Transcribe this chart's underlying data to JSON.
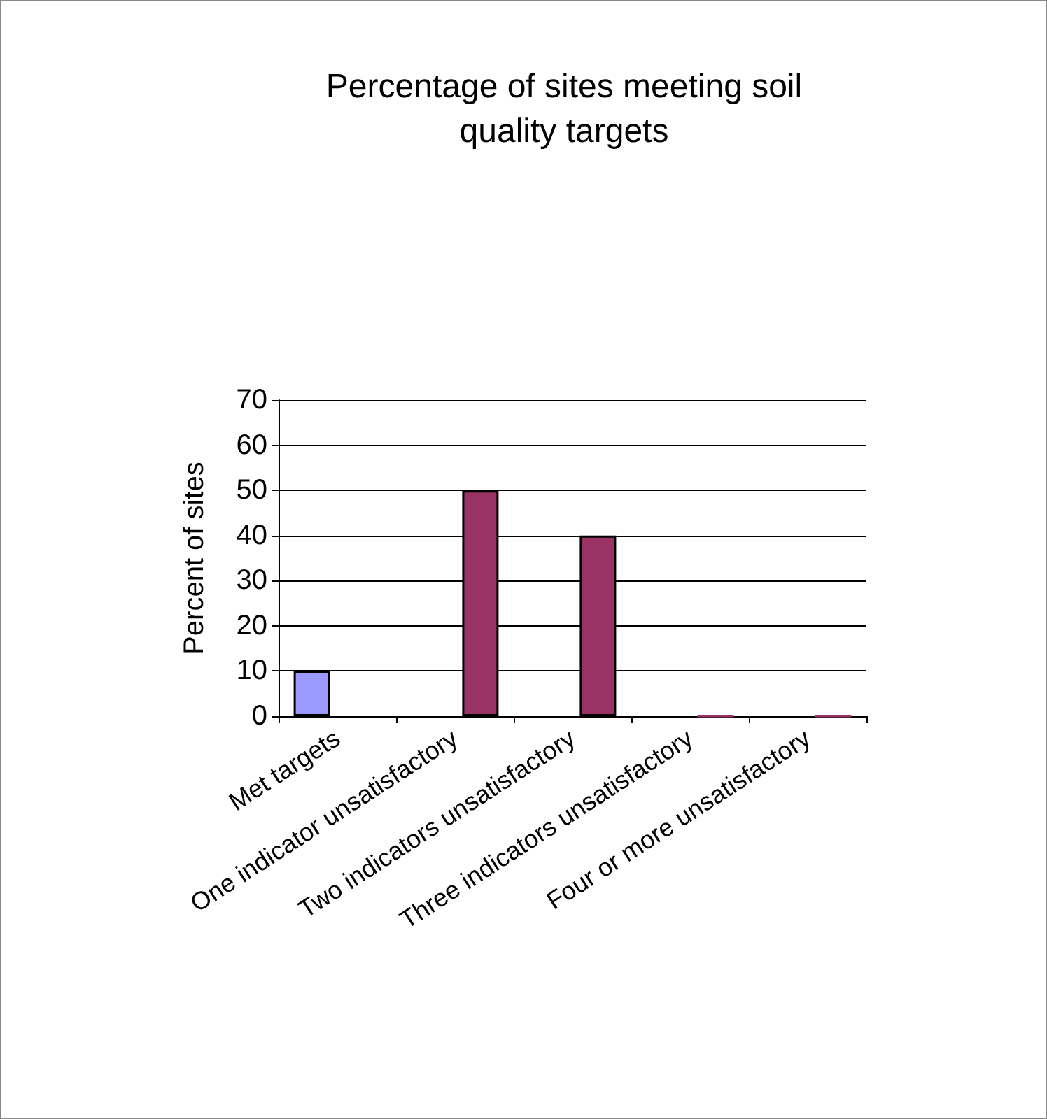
{
  "chart_data": {
    "type": "bar",
    "title": "Percentage of sites meeting soil\nquality targets",
    "ylabel": "Percent of sites",
    "categories": [
      "Met targets",
      "One indicator unsatisfactory",
      "Two indicators unsatisfactory",
      "Three indicators unsatisfactory",
      "Four or more unsatisfactory"
    ],
    "series": [
      {
        "color": "#9999ff",
        "values": [
          10,
          null,
          null,
          null,
          null
        ]
      },
      {
        "color": "#993366",
        "values": [
          null,
          50,
          40,
          0,
          0
        ]
      }
    ],
    "ylim": [
      0,
      70
    ],
    "yticks": [
      0,
      10,
      20,
      30,
      40,
      50,
      60,
      70
    ],
    "grid": "y"
  }
}
